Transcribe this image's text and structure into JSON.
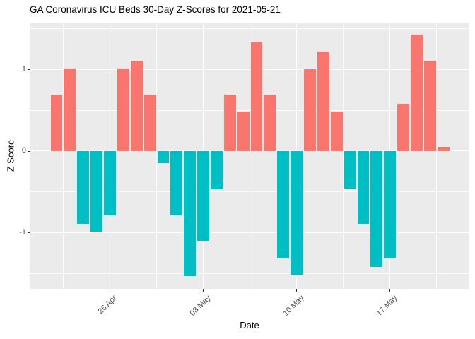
{
  "window": {
    "title": "GA Coronavirus ICU Beds 30-Day Z-Scores for 2021-05-21"
  },
  "chart_data": {
    "type": "bar",
    "title": "GA Coronavirus ICU Beds 30-Day Z-Scores for 2021-05-21",
    "xlabel": "Date",
    "ylabel": "Z Score",
    "x": [
      "2021-04-22",
      "2021-04-23",
      "2021-04-24",
      "2021-04-25",
      "2021-04-26",
      "2021-04-27",
      "2021-04-28",
      "2021-04-29",
      "2021-04-30",
      "2021-05-01",
      "2021-05-02",
      "2021-05-03",
      "2021-05-04",
      "2021-05-05",
      "2021-05-06",
      "2021-05-07",
      "2021-05-08",
      "2021-05-09",
      "2021-05-10",
      "2021-05-11",
      "2021-05-12",
      "2021-05-13",
      "2021-05-14",
      "2021-05-15",
      "2021-05-16",
      "2021-05-17",
      "2021-05-18",
      "2021-05-19",
      "2021-05-20",
      "2021-05-21"
    ],
    "values": [
      0.69,
      1.01,
      -0.89,
      -0.99,
      -0.79,
      1.01,
      1.11,
      0.69,
      -0.15,
      -0.79,
      -1.53,
      -1.1,
      -0.47,
      0.69,
      0.48,
      1.33,
      0.69,
      -1.32,
      -1.52,
      1.0,
      1.22,
      0.48,
      -0.46,
      -0.89,
      -1.42,
      -1.32,
      0.58,
      1.43,
      1.11,
      0.05
    ],
    "series_rule": "fill by sign of z-score",
    "positive_color": "#F8766D",
    "negative_color": "#00BFC4",
    "panel_background": "#EBEBEB",
    "grid_color": "#FFFFFF",
    "grid": true,
    "legend_position": "none",
    "ylim": [
      -1.69,
      1.565
    ],
    "yticks": [
      -1,
      0,
      1
    ],
    "ytick_labels": [
      "-1",
      "0",
      "1"
    ],
    "yminor": [
      -1.5,
      -0.5,
      0.5,
      1.5
    ],
    "xticks": [
      {
        "index": 4,
        "label": "26 Apr"
      },
      {
        "index": 11,
        "label": "03 May"
      },
      {
        "index": 18,
        "label": "10 May"
      },
      {
        "index": 25,
        "label": "17 May"
      }
    ],
    "xminor_indices": [
      0.5,
      7.5,
      14.5,
      21.5,
      28.5
    ]
  }
}
